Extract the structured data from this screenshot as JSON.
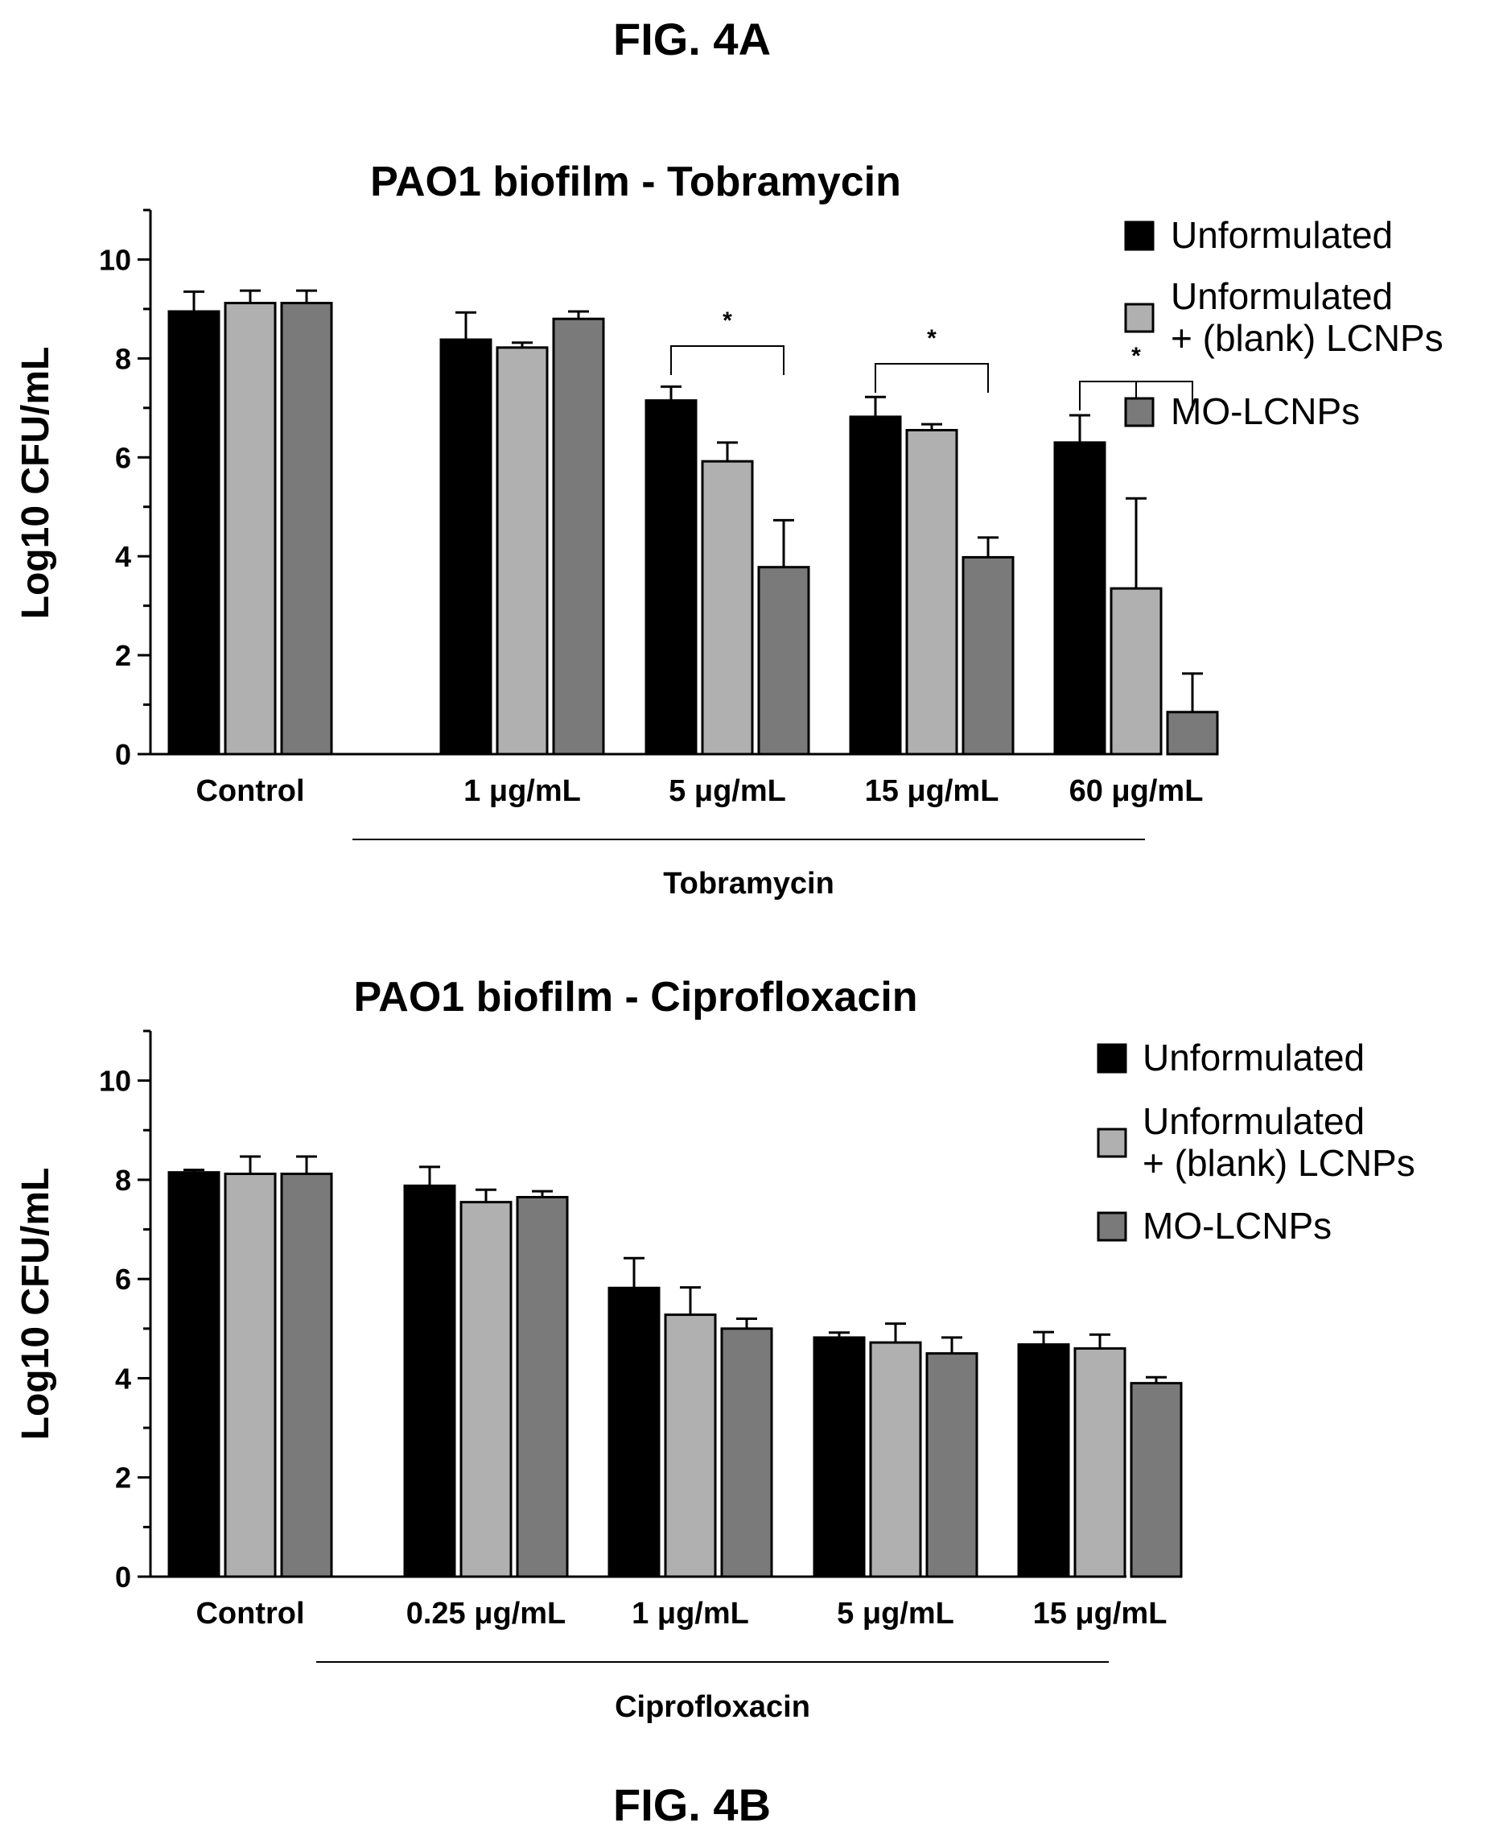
{
  "figure_labels": {
    "top": "FIG. 4A",
    "bottom": "FIG. 4B"
  },
  "colors": {
    "unformulated": "#000000",
    "blank_lcnps": "#b0b0b0",
    "mo_lcnps": "#7a7a7a"
  },
  "chart_data": [
    {
      "type": "bar",
      "title": "PAO1 biofilm - Tobramycin",
      "xlabel": "Tobramycin",
      "ylabel": "Log10 CFU/mL",
      "ylim": [
        0,
        11
      ],
      "yticks": [
        0,
        2,
        4,
        6,
        8,
        10
      ],
      "categories": [
        "Control",
        "1 μg/mL",
        "5 μg/mL",
        "15 μg/mL",
        "60 μg/mL"
      ],
      "grouped_categories_from": 1,
      "legend_position": "top-right",
      "series": [
        {
          "name": "Unformulated",
          "values": [
            8.95,
            8.38,
            7.15,
            6.82,
            6.3
          ],
          "errors": [
            0.4,
            0.55,
            0.28,
            0.4,
            0.55
          ]
        },
        {
          "name": "Unformulated\n+ (blank) LCNPs",
          "values": [
            9.12,
            8.22,
            5.92,
            6.55,
            3.35
          ],
          "errors": [
            0.25,
            0.1,
            0.38,
            0.12,
            1.82
          ]
        },
        {
          "name": "MO-LCNPs",
          "values": [
            9.12,
            8.8,
            3.78,
            3.98,
            0.85
          ],
          "errors": [
            0.25,
            0.15,
            0.95,
            0.4,
            0.78
          ]
        }
      ],
      "significance": [
        {
          "category": 2,
          "label": "*",
          "bracket": "simple"
        },
        {
          "category": 3,
          "label": "*",
          "bracket": "simple"
        },
        {
          "category": 4,
          "label": "*",
          "bracket": "forked"
        }
      ]
    },
    {
      "type": "bar",
      "title": "PAO1 biofilm - Ciprofloxacin",
      "xlabel": "Ciprofloxacin",
      "ylabel": "Log10 CFU/mL",
      "ylim": [
        0,
        11
      ],
      "yticks": [
        0,
        2,
        4,
        6,
        8,
        10
      ],
      "categories": [
        "Control",
        "0.25 μg/mL",
        "1 μg/mL",
        "5 μg/mL",
        "15 μg/mL"
      ],
      "grouped_categories_from": 1,
      "legend_position": "top-right",
      "series": [
        {
          "name": "Unformulated",
          "values": [
            8.15,
            7.88,
            5.82,
            4.82,
            4.68
          ],
          "errors": [
            0.05,
            0.38,
            0.6,
            0.1,
            0.25
          ]
        },
        {
          "name": "Unformulated\n+ (blank) LCNPs",
          "values": [
            8.12,
            7.55,
            5.28,
            4.72,
            4.6
          ],
          "errors": [
            0.35,
            0.25,
            0.55,
            0.38,
            0.28
          ]
        },
        {
          "name": "MO-LCNPs",
          "values": [
            8.12,
            7.65,
            5.0,
            4.5,
            3.9
          ],
          "errors": [
            0.35,
            0.12,
            0.2,
            0.32,
            0.12
          ]
        }
      ],
      "significance": []
    }
  ]
}
